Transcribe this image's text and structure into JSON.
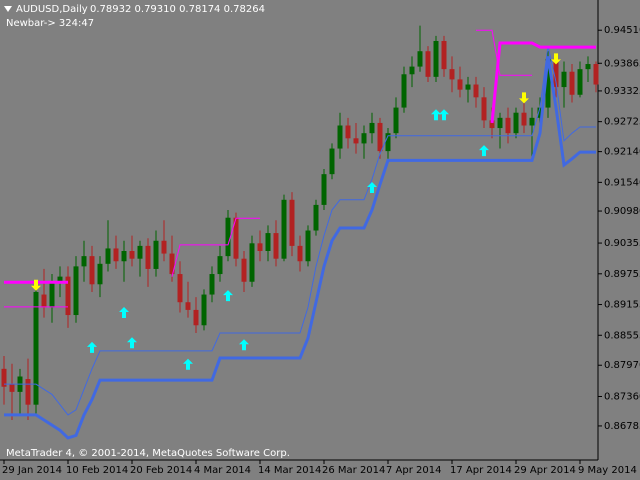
{
  "header": {
    "title": "AUDUSD,Daily",
    "ohlc": "0.78932 0.79310 0.78174 0.78264",
    "newbar": "Newbar-> 324:47"
  },
  "footer": "MetaTrader 4, © 2001-2014, MetaQuotes Software Corp.",
  "chart_data": {
    "type": "candlestick",
    "categories": [
      "29 Jan 2014",
      null,
      null,
      null,
      null,
      null,
      null,
      null,
      "10 Feb 2014",
      null,
      null,
      null,
      null,
      null,
      null,
      null,
      "20 Feb 2014",
      null,
      null,
      null,
      null,
      null,
      null,
      null,
      "4 Mar 2014",
      null,
      null,
      null,
      null,
      null,
      null,
      null,
      "14 Mar 2014",
      null,
      null,
      null,
      null,
      null,
      null,
      null,
      "26 Mar 2014",
      null,
      null,
      null,
      null,
      null,
      null,
      null,
      "7 Apr 2014",
      null,
      null,
      null,
      null,
      null,
      null,
      null,
      "17 Apr 2014",
      null,
      null,
      null,
      null,
      null,
      null,
      null,
      "29 Apr 2014",
      null,
      null,
      null,
      null,
      null,
      null,
      null,
      "9 May 2014",
      null,
      null
    ],
    "open": [
      0.879,
      0.876,
      0.8745,
      0.877,
      0.872,
      0.8935,
      0.891,
      0.896,
      0.897,
      0.8895,
      0.899,
      0.901,
      0.8955,
      0.8995,
      0.9025,
      0.9,
      0.902,
      0.9005,
      0.903,
      0.8985,
      0.904,
      0.9015,
      0.8975,
      0.892,
      0.8905,
      0.8875,
      0.8935,
      0.8975,
      0.901,
      0.9085,
      0.9005,
      0.896,
      0.9035,
      0.902,
      0.9055,
      0.9005,
      0.912,
      0.903,
      0.9,
      0.906,
      0.911,
      0.917,
      0.922,
      0.9265,
      0.924,
      0.923,
      0.925,
      0.927,
      0.9215,
      0.925,
      0.93,
      0.9365,
      0.938,
      0.941,
      0.936,
      0.943,
      0.9375,
      0.9355,
      0.9335,
      0.9345,
      0.932,
      0.9275,
      0.926,
      0.928,
      0.925,
      0.929,
      0.9265,
      0.928,
      0.93,
      0.9395,
      0.934,
      0.937,
      0.9325,
      0.9375,
      0.9385
    ],
    "high": [
      0.8815,
      0.88,
      0.879,
      0.881,
      0.896,
      0.8985,
      0.8975,
      0.899,
      0.899,
      0.901,
      0.904,
      0.903,
      0.901,
      0.908,
      0.905,
      0.904,
      0.905,
      0.904,
      0.9045,
      0.906,
      0.908,
      0.905,
      0.9,
      0.896,
      0.893,
      0.8945,
      0.899,
      0.903,
      0.91,
      0.9095,
      0.902,
      0.905,
      0.906,
      0.907,
      0.908,
      0.913,
      0.9135,
      0.905,
      0.907,
      0.912,
      0.918,
      0.923,
      0.929,
      0.928,
      0.927,
      0.9265,
      0.929,
      0.928,
      0.926,
      0.932,
      0.938,
      0.94,
      0.946,
      0.942,
      0.944,
      0.944,
      0.94,
      0.938,
      0.936,
      0.936,
      0.934,
      0.93,
      0.929,
      0.93,
      0.93,
      0.931,
      0.93,
      0.932,
      0.941,
      0.9405,
      0.939,
      0.9385,
      0.939,
      0.94,
      0.939
    ],
    "low": [
      0.872,
      0.869,
      0.87,
      0.869,
      0.87,
      0.889,
      0.888,
      0.893,
      0.887,
      0.888,
      0.896,
      0.894,
      0.893,
      0.898,
      0.8985,
      0.896,
      0.899,
      0.897,
      0.895,
      0.897,
      0.9,
      0.896,
      0.89,
      0.889,
      0.886,
      0.8865,
      0.892,
      0.896,
      0.9,
      0.899,
      0.894,
      0.895,
      0.9,
      0.9,
      0.899,
      0.9,
      0.901,
      0.898,
      0.899,
      0.905,
      0.91,
      0.916,
      0.92,
      0.922,
      0.921,
      0.92,
      0.923,
      0.92,
      0.92,
      0.924,
      0.929,
      0.934,
      0.937,
      0.935,
      0.935,
      0.936,
      0.933,
      0.932,
      0.931,
      0.93,
      0.926,
      0.924,
      0.922,
      0.923,
      0.924,
      0.925,
      0.92,
      0.926,
      0.928,
      0.932,
      0.93,
      0.931,
      0.932,
      0.935,
      0.933
    ],
    "close": [
      0.8755,
      0.8745,
      0.8775,
      0.872,
      0.894,
      0.891,
      0.896,
      0.897,
      0.8895,
      0.899,
      0.901,
      0.8955,
      0.8995,
      0.9025,
      0.9,
      0.902,
      0.9005,
      0.903,
      0.8985,
      0.904,
      0.9015,
      0.8975,
      0.892,
      0.8905,
      0.8875,
      0.8935,
      0.8975,
      0.901,
      0.9085,
      0.9005,
      0.896,
      0.9035,
      0.902,
      0.9055,
      0.9005,
      0.912,
      0.903,
      0.9,
      0.906,
      0.911,
      0.917,
      0.922,
      0.9265,
      0.924,
      0.923,
      0.925,
      0.927,
      0.9215,
      0.925,
      0.93,
      0.9365,
      0.938,
      0.941,
      0.936,
      0.943,
      0.9375,
      0.9355,
      0.9335,
      0.9345,
      0.932,
      0.9275,
      0.926,
      0.928,
      0.925,
      0.929,
      0.9265,
      0.928,
      0.93,
      0.9395,
      0.934,
      0.937,
      0.9325,
      0.9375,
      0.9385,
      0.9345
    ],
    "up_color": "#006400",
    "down_color": "#b22222",
    "series": [
      {
        "color": "#4169e1",
        "width": 3,
        "values": [
          0.87,
          0.87,
          0.87,
          0.87,
          0.87,
          0.869,
          0.868,
          0.867,
          0.8655,
          0.866,
          0.87,
          0.873,
          0.8768,
          0.8768,
          0.8768,
          0.8768,
          0.8768,
          0.8768,
          0.8768,
          0.8768,
          0.8768,
          0.8768,
          0.8768,
          0.8768,
          0.8768,
          0.8768,
          0.8768,
          0.8811,
          0.8811,
          0.8811,
          0.8811,
          0.8811,
          0.8811,
          0.8811,
          0.8811,
          0.8811,
          0.8811,
          0.8811,
          0.885,
          0.892,
          0.899,
          0.904,
          0.9065,
          0.9065,
          0.9065,
          0.9065,
          0.91,
          0.915,
          0.9197,
          0.9197,
          0.9197,
          0.9197,
          0.9197,
          0.9197,
          0.9197,
          0.9197,
          0.9197,
          0.9197,
          0.9197,
          0.9197,
          0.9197,
          0.9197,
          0.9197,
          0.9197,
          0.9197,
          0.9197,
          0.9197,
          0.925,
          0.94,
          0.93,
          0.9188,
          0.92,
          0.9213,
          0.9213,
          0.9213
        ]
      },
      {
        "color": "#4169e1",
        "width": 1,
        "values": [
          0.876,
          0.876,
          0.876,
          0.876,
          0.876,
          0.875,
          0.874,
          0.872,
          0.87,
          0.871,
          0.875,
          0.879,
          0.8825,
          0.8825,
          0.8825,
          0.8825,
          0.8825,
          0.8825,
          0.8825,
          0.8825,
          0.8825,
          0.8825,
          0.8825,
          0.8825,
          0.8825,
          0.8825,
          0.8825,
          0.886,
          0.886,
          0.886,
          0.886,
          0.886,
          0.886,
          0.886,
          0.886,
          0.886,
          0.886,
          0.886,
          0.891,
          0.899,
          0.905,
          0.91,
          0.912,
          0.912,
          0.912,
          0.912,
          0.916,
          0.921,
          0.9245,
          0.9245,
          0.9245,
          0.9245,
          0.9245,
          0.9245,
          0.9245,
          0.9245,
          0.9245,
          0.9245,
          0.9245,
          0.9245,
          0.9245,
          0.9245,
          0.9245,
          0.9245,
          0.9245,
          0.9245,
          0.9245,
          0.93,
          0.942,
          0.935,
          0.9235,
          0.925,
          0.9262,
          0.9262,
          0.9262
        ]
      },
      {
        "color": "#ff00ff",
        "width": 3,
        "values": [
          0.8959,
          0.8959,
          0.8959,
          0.8959,
          0.8959,
          0.8959,
          0.8959,
          0.8959,
          0.8959,
          null,
          null,
          null,
          null,
          null,
          null,
          null,
          null,
          null,
          null,
          null,
          null,
          null,
          null,
          null,
          null,
          null,
          null,
          null,
          null,
          null,
          null,
          null,
          null,
          null,
          null,
          null,
          null,
          null,
          null,
          null,
          null,
          null,
          null,
          null,
          null,
          null,
          null,
          null,
          null,
          null,
          null,
          null,
          null,
          null,
          null,
          null,
          null,
          null,
          null,
          null,
          null,
          0.927,
          0.9426,
          0.9426,
          0.9426,
          0.9426,
          0.9426,
          0.9418,
          0.9418,
          0.9418,
          0.9418,
          0.9418,
          0.9418,
          0.9418,
          0.9418
        ]
      },
      {
        "color": "#ff00ff",
        "width": 1,
        "values": [
          0.8911,
          0.8911,
          0.8911,
          0.8911,
          0.8911,
          0.8911,
          0.8911,
          0.8911,
          0.8911,
          null,
          null,
          null,
          null,
          null,
          null,
          null,
          null,
          null,
          null,
          null,
          null,
          0.897,
          0.9032,
          0.9032,
          0.9032,
          0.9032,
          0.9032,
          0.9032,
          0.9032,
          0.9084,
          0.9084,
          0.9084,
          0.9084,
          null,
          null,
          null,
          null,
          null,
          null,
          null,
          null,
          null,
          null,
          null,
          null,
          null,
          null,
          null,
          null,
          null,
          null,
          null,
          null,
          null,
          null,
          null,
          null,
          null,
          null,
          0.9451,
          0.9451,
          0.9451,
          0.9363,
          0.9363,
          0.9363,
          0.9363,
          0.9363,
          null,
          null,
          null,
          null,
          null,
          null,
          null,
          null
        ]
      }
    ],
    "arrows": [
      {
        "direction": "up",
        "color": "#00ffff",
        "values": [
          null,
          null,
          null,
          null,
          null,
          null,
          null,
          null,
          null,
          null,
          null,
          0.8831,
          null,
          null,
          null,
          0.8899,
          0.884,
          null,
          null,
          null,
          null,
          null,
          null,
          0.8798,
          null,
          null,
          null,
          null,
          0.8932,
          null,
          0.8836,
          null,
          null,
          null,
          null,
          null,
          null,
          null,
          null,
          null,
          null,
          null,
          null,
          null,
          null,
          null,
          0.9143,
          null,
          null,
          null,
          null,
          null,
          null,
          null,
          0.9285,
          0.9285,
          null,
          null,
          null,
          null,
          0.9215,
          null,
          null,
          null,
          null,
          null,
          null,
          null,
          null,
          null,
          null,
          null,
          null,
          null,
          null
        ]
      },
      {
        "direction": "down",
        "color": "#ffff00",
        "values": [
          null,
          null,
          null,
          null,
          0.8954,
          null,
          null,
          null,
          null,
          null,
          null,
          null,
          null,
          null,
          null,
          null,
          null,
          null,
          null,
          null,
          null,
          null,
          null,
          null,
          null,
          null,
          null,
          null,
          null,
          null,
          null,
          null,
          null,
          null,
          null,
          null,
          null,
          null,
          null,
          null,
          null,
          null,
          null,
          null,
          null,
          null,
          null,
          null,
          null,
          null,
          null,
          null,
          null,
          null,
          null,
          null,
          null,
          null,
          null,
          null,
          null,
          null,
          null,
          null,
          null,
          0.932,
          null,
          null,
          null,
          0.9396,
          null,
          null,
          null,
          null,
          null
        ]
      }
    ],
    "ylim": [
      0.8612,
      0.951
    ],
    "yticks": [
      {
        "value": 0.9451,
        "label": "0.94510"
      },
      0.93865,
      0.93325,
      0.92725,
      {
        "value": 0.9214,
        "label": "0.92140"
      },
      {
        "value": 0.9154,
        "label": "0.91540"
      },
      {
        "value": 0.9098,
        "label": "0.90980"
      },
      0.90355,
      0.89755,
      0.89155,
      0.88555,
      {
        "value": 0.8797,
        "label": "0.87970"
      },
      {
        "value": 0.8736,
        "label": "0.87360"
      },
      0.86785
    ]
  }
}
